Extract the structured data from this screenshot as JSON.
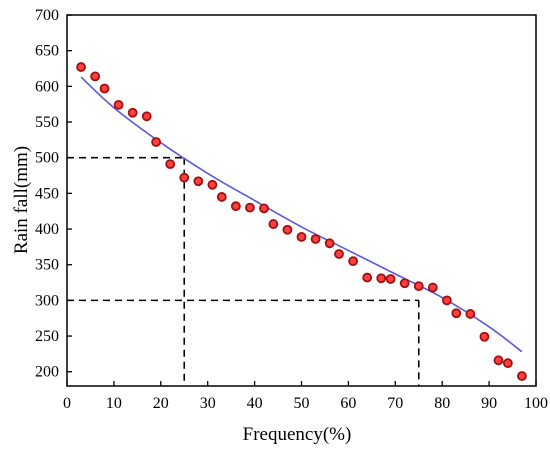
{
  "chart_data": {
    "type": "scatter",
    "xlabel": "Frequency(%)",
    "ylabel": "Rain fall(mm)",
    "xlim": [
      0,
      100
    ],
    "ylim": [
      180,
      700
    ],
    "x_ticks": [
      0,
      10,
      20,
      30,
      40,
      50,
      60,
      70,
      80,
      90,
      100
    ],
    "y_ticks": [
      200,
      250,
      300,
      350,
      400,
      450,
      500,
      550,
      600,
      650,
      700
    ],
    "grid": false,
    "colors": {
      "point_fill": "#ff4040",
      "point_stroke": "#a01010",
      "curve": "#5a5adf",
      "guide": "#000000"
    },
    "series": [
      {
        "kind": "points",
        "x": [
          3,
          6,
          8,
          11,
          14,
          17,
          19,
          22,
          25,
          28,
          31,
          33,
          36,
          39,
          42,
          44,
          47,
          50,
          53,
          56,
          58,
          61,
          64,
          67,
          69,
          72,
          75,
          78,
          81,
          83,
          86,
          89,
          92,
          94,
          97
        ],
        "y": [
          627,
          614,
          597,
          574,
          563,
          558,
          522,
          491,
          472,
          467,
          462,
          445,
          432,
          430,
          429,
          407,
          399,
          389,
          386,
          380,
          365,
          355,
          332,
          331,
          330,
          324,
          320,
          318,
          300,
          282,
          281,
          249,
          216,
          212,
          194
        ]
      },
      {
        "kind": "fit-curve",
        "x": [
          3,
          10,
          20,
          30,
          40,
          50,
          60,
          70,
          80,
          90,
          97
        ],
        "y": [
          613,
          570,
          521,
          478,
          440,
          403,
          370,
          337,
          304,
          263,
          228
        ]
      }
    ],
    "guides": [
      {
        "x": 25,
        "y": 500
      },
      {
        "x": 75,
        "y": 300
      }
    ]
  }
}
